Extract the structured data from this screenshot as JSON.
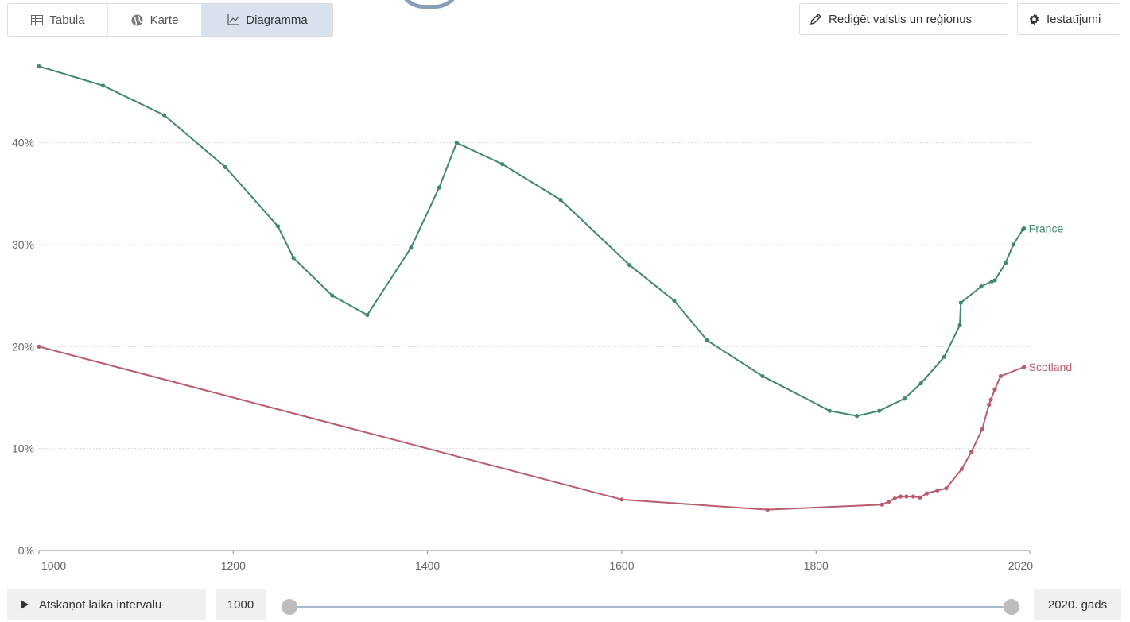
{
  "toolbar": {
    "tabs": [
      {
        "label": "Tabula",
        "icon": "table-icon"
      },
      {
        "label": "Karte",
        "icon": "globe-icon"
      },
      {
        "label": "Diagramma",
        "icon": "line-chart-icon",
        "active": true
      }
    ],
    "edit_label": "Rediģēt valstis un reģionus",
    "settings_label": "Iestatījumi"
  },
  "timeline": {
    "play_label": "Atskaņot laika intervālu",
    "start_year": "1000",
    "end_year": "2020. gads"
  },
  "chart_data": {
    "type": "line",
    "title": "",
    "xlabel": "",
    "ylabel": "",
    "xlim": [
      1000,
      2020
    ],
    "ylim": [
      0,
      48
    ],
    "x_ticks": [
      "1000",
      "1200",
      "1400",
      "1600",
      "1800",
      "2020"
    ],
    "y_ticks": [
      "0%",
      "10%",
      "20%",
      "30%",
      "40%"
    ],
    "grid": "horizontal dotted",
    "series": [
      {
        "name": "France",
        "color": "#3f8a68",
        "points": [
          [
            1000,
            47.5
          ],
          [
            1066,
            45.6
          ],
          [
            1129,
            42.7
          ],
          [
            1192,
            37.6
          ],
          [
            1246,
            31.8
          ],
          [
            1262,
            28.7
          ],
          [
            1302,
            25.0
          ],
          [
            1338,
            23.1
          ],
          [
            1383,
            29.7
          ],
          [
            1412,
            35.6
          ],
          [
            1430,
            40.0
          ],
          [
            1477,
            37.9
          ],
          [
            1537,
            34.4
          ],
          [
            1608,
            28.0
          ],
          [
            1654,
            24.5
          ],
          [
            1688,
            20.6
          ],
          [
            1745,
            17.1
          ],
          [
            1814,
            13.7
          ],
          [
            1842,
            13.2
          ],
          [
            1865,
            13.7
          ],
          [
            1891,
            14.9
          ],
          [
            1908,
            16.4
          ],
          [
            1932,
            19.0
          ],
          [
            1948,
            22.1
          ],
          [
            1949,
            24.3
          ],
          [
            1970,
            25.9
          ],
          [
            1981,
            26.4
          ],
          [
            1984,
            26.5
          ],
          [
            1995,
            28.2
          ],
          [
            2003,
            30.0
          ],
          [
            2013,
            31.5
          ],
          [
            2014,
            31.6
          ]
        ]
      },
      {
        "name": "Scotland",
        "color": "#b85c6e",
        "points": [
          [
            1000,
            20.0
          ],
          [
            1600,
            5.0
          ],
          [
            1750,
            4.0
          ],
          [
            1868,
            4.5
          ],
          [
            1875,
            4.8
          ],
          [
            1881,
            5.1
          ],
          [
            1887,
            5.3
          ],
          [
            1893,
            5.3
          ],
          [
            1900,
            5.3
          ],
          [
            1907,
            5.2
          ],
          [
            1914,
            5.6
          ],
          [
            1925,
            5.9
          ],
          [
            1934,
            6.1
          ],
          [
            1950,
            8.0
          ],
          [
            1960,
            9.7
          ],
          [
            1971,
            11.9
          ],
          [
            1978,
            14.3
          ],
          [
            1980,
            14.8
          ],
          [
            1984,
            15.8
          ],
          [
            1990,
            17.1
          ],
          [
            2014,
            18.0
          ]
        ]
      }
    ]
  }
}
